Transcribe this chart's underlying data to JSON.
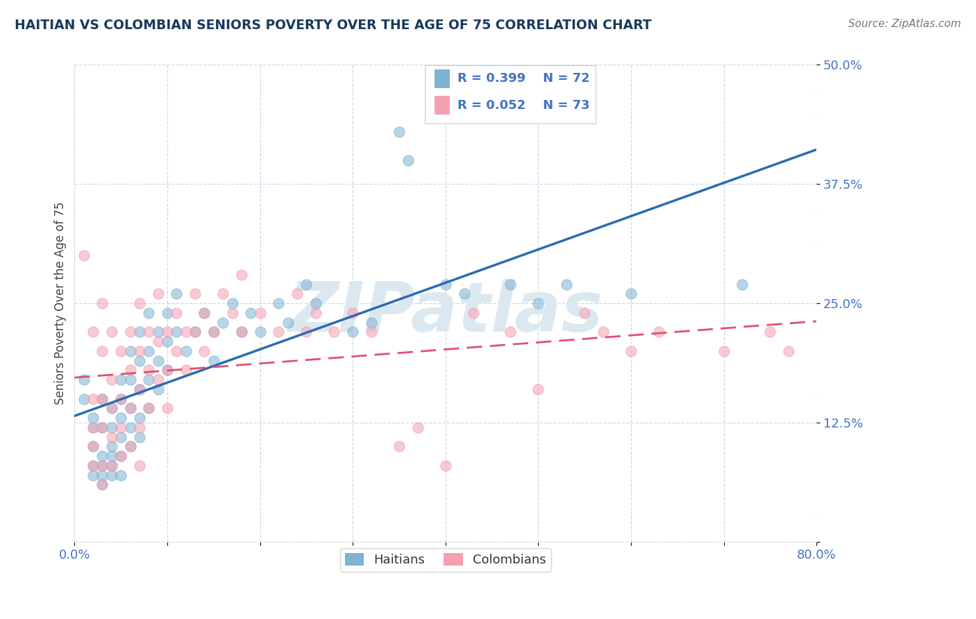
{
  "title": "HAITIAN VS COLOMBIAN SENIORS POVERTY OVER THE AGE OF 75 CORRELATION CHART",
  "source_text": "Source: ZipAtlas.com",
  "ylabel": "Seniors Poverty Over the Age of 75",
  "xlim": [
    0.0,
    0.8
  ],
  "ylim": [
    0.0,
    0.5
  ],
  "yticks": [
    0.0,
    0.125,
    0.25,
    0.375,
    0.5
  ],
  "ytick_labels": [
    "",
    "12.5%",
    "25.0%",
    "37.5%",
    "50.0%"
  ],
  "xticks": [
    0.0,
    0.1,
    0.2,
    0.3,
    0.4,
    0.5,
    0.6,
    0.7,
    0.8
  ],
  "xtick_labels": [
    "0.0%",
    "",
    "",
    "",
    "",
    "",
    "",
    "",
    "80.0%"
  ],
  "haitian_color": "#7fb3d3",
  "colombian_color": "#f4a0b0",
  "haitian_line_color": "#2b6cb0",
  "colombian_line_color": "#e05070",
  "haitian_R": 0.399,
  "haitian_N": 72,
  "colombian_R": 0.052,
  "colombian_N": 73,
  "title_color": "#1a3a5c",
  "axis_label_color": "#4472c4",
  "tick_label_color": "#4472c4",
  "background_color": "#ffffff",
  "watermark_text": "ZIPatlas",
  "watermark_color": "#dce8f0",
  "legend_label_haitian": "Haitians",
  "legend_label_colombian": "Colombians",
  "grid_color": "#c5d5e8",
  "haitian_scatter": [
    [
      0.01,
      0.17
    ],
    [
      0.01,
      0.15
    ],
    [
      0.02,
      0.13
    ],
    [
      0.02,
      0.1
    ],
    [
      0.02,
      0.12
    ],
    [
      0.02,
      0.08
    ],
    [
      0.02,
      0.07
    ],
    [
      0.03,
      0.15
    ],
    [
      0.03,
      0.12
    ],
    [
      0.03,
      0.09
    ],
    [
      0.03,
      0.08
    ],
    [
      0.03,
      0.06
    ],
    [
      0.03,
      0.07
    ],
    [
      0.04,
      0.14
    ],
    [
      0.04,
      0.12
    ],
    [
      0.04,
      0.1
    ],
    [
      0.04,
      0.09
    ],
    [
      0.04,
      0.08
    ],
    [
      0.04,
      0.07
    ],
    [
      0.05,
      0.17
    ],
    [
      0.05,
      0.15
    ],
    [
      0.05,
      0.13
    ],
    [
      0.05,
      0.11
    ],
    [
      0.05,
      0.09
    ],
    [
      0.05,
      0.07
    ],
    [
      0.06,
      0.2
    ],
    [
      0.06,
      0.17
    ],
    [
      0.06,
      0.14
    ],
    [
      0.06,
      0.12
    ],
    [
      0.06,
      0.1
    ],
    [
      0.07,
      0.22
    ],
    [
      0.07,
      0.19
    ],
    [
      0.07,
      0.16
    ],
    [
      0.07,
      0.13
    ],
    [
      0.07,
      0.11
    ],
    [
      0.08,
      0.24
    ],
    [
      0.08,
      0.2
    ],
    [
      0.08,
      0.17
    ],
    [
      0.08,
      0.14
    ],
    [
      0.09,
      0.22
    ],
    [
      0.09,
      0.19
    ],
    [
      0.09,
      0.16
    ],
    [
      0.1,
      0.24
    ],
    [
      0.1,
      0.21
    ],
    [
      0.1,
      0.18
    ],
    [
      0.11,
      0.26
    ],
    [
      0.11,
      0.22
    ],
    [
      0.12,
      0.2
    ],
    [
      0.13,
      0.22
    ],
    [
      0.14,
      0.24
    ],
    [
      0.15,
      0.22
    ],
    [
      0.15,
      0.19
    ],
    [
      0.16,
      0.23
    ],
    [
      0.17,
      0.25
    ],
    [
      0.18,
      0.22
    ],
    [
      0.19,
      0.24
    ],
    [
      0.2,
      0.22
    ],
    [
      0.22,
      0.25
    ],
    [
      0.23,
      0.23
    ],
    [
      0.25,
      0.27
    ],
    [
      0.26,
      0.25
    ],
    [
      0.3,
      0.22
    ],
    [
      0.32,
      0.23
    ],
    [
      0.35,
      0.43
    ],
    [
      0.36,
      0.4
    ],
    [
      0.4,
      0.27
    ],
    [
      0.42,
      0.26
    ],
    [
      0.47,
      0.27
    ],
    [
      0.5,
      0.25
    ],
    [
      0.53,
      0.27
    ],
    [
      0.6,
      0.26
    ],
    [
      0.72,
      0.27
    ]
  ],
  "colombian_scatter": [
    [
      0.01,
      0.3
    ],
    [
      0.02,
      0.22
    ],
    [
      0.02,
      0.15
    ],
    [
      0.02,
      0.12
    ],
    [
      0.02,
      0.1
    ],
    [
      0.02,
      0.08
    ],
    [
      0.03,
      0.25
    ],
    [
      0.03,
      0.2
    ],
    [
      0.03,
      0.15
    ],
    [
      0.03,
      0.12
    ],
    [
      0.03,
      0.08
    ],
    [
      0.03,
      0.06
    ],
    [
      0.04,
      0.22
    ],
    [
      0.04,
      0.17
    ],
    [
      0.04,
      0.14
    ],
    [
      0.04,
      0.11
    ],
    [
      0.04,
      0.08
    ],
    [
      0.05,
      0.2
    ],
    [
      0.05,
      0.15
    ],
    [
      0.05,
      0.12
    ],
    [
      0.05,
      0.09
    ],
    [
      0.06,
      0.22
    ],
    [
      0.06,
      0.18
    ],
    [
      0.06,
      0.14
    ],
    [
      0.06,
      0.1
    ],
    [
      0.07,
      0.25
    ],
    [
      0.07,
      0.2
    ],
    [
      0.07,
      0.16
    ],
    [
      0.07,
      0.12
    ],
    [
      0.07,
      0.08
    ],
    [
      0.08,
      0.22
    ],
    [
      0.08,
      0.18
    ],
    [
      0.08,
      0.14
    ],
    [
      0.09,
      0.26
    ],
    [
      0.09,
      0.21
    ],
    [
      0.09,
      0.17
    ],
    [
      0.1,
      0.22
    ],
    [
      0.1,
      0.18
    ],
    [
      0.1,
      0.14
    ],
    [
      0.11,
      0.24
    ],
    [
      0.11,
      0.2
    ],
    [
      0.12,
      0.22
    ],
    [
      0.12,
      0.18
    ],
    [
      0.13,
      0.26
    ],
    [
      0.13,
      0.22
    ],
    [
      0.14,
      0.24
    ],
    [
      0.14,
      0.2
    ],
    [
      0.15,
      0.22
    ],
    [
      0.16,
      0.26
    ],
    [
      0.17,
      0.24
    ],
    [
      0.18,
      0.28
    ],
    [
      0.18,
      0.22
    ],
    [
      0.2,
      0.24
    ],
    [
      0.22,
      0.22
    ],
    [
      0.24,
      0.26
    ],
    [
      0.25,
      0.22
    ],
    [
      0.26,
      0.24
    ],
    [
      0.28,
      0.22
    ],
    [
      0.3,
      0.24
    ],
    [
      0.32,
      0.22
    ],
    [
      0.35,
      0.1
    ],
    [
      0.37,
      0.12
    ],
    [
      0.4,
      0.08
    ],
    [
      0.43,
      0.24
    ],
    [
      0.47,
      0.22
    ],
    [
      0.5,
      0.16
    ],
    [
      0.55,
      0.24
    ],
    [
      0.57,
      0.22
    ],
    [
      0.6,
      0.2
    ],
    [
      0.63,
      0.22
    ],
    [
      0.7,
      0.2
    ],
    [
      0.75,
      0.22
    ],
    [
      0.77,
      0.2
    ]
  ]
}
